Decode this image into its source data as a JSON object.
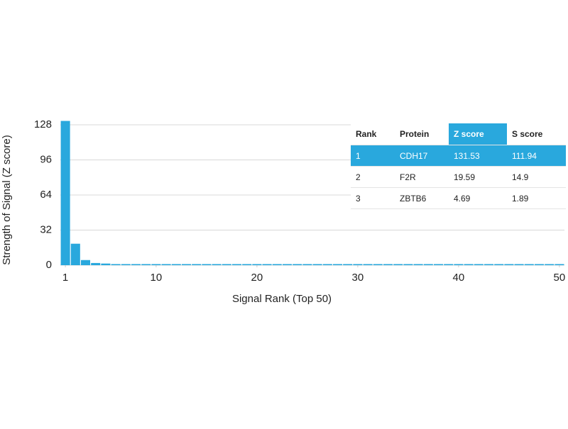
{
  "chart_data": {
    "type": "bar",
    "x_label": "Signal Rank (Top 50)",
    "y_label": "Strength of Signal (Z score)",
    "x": [
      1,
      2,
      3,
      4,
      5,
      6,
      7,
      8,
      9,
      10,
      11,
      12,
      13,
      14,
      15,
      16,
      17,
      18,
      19,
      20,
      21,
      22,
      23,
      24,
      25,
      26,
      27,
      28,
      29,
      30,
      31,
      32,
      33,
      34,
      35,
      36,
      37,
      38,
      39,
      40,
      41,
      42,
      43,
      44,
      45,
      46,
      47,
      48,
      49,
      50
    ],
    "values": [
      131.53,
      19.59,
      4.69,
      2,
      1.5,
      1,
      1,
      1,
      1,
      1,
      1,
      1,
      1,
      1,
      1,
      1,
      1,
      1,
      1,
      1,
      1,
      1,
      1,
      1,
      1,
      1,
      1,
      1,
      1,
      1,
      1,
      1,
      1,
      1,
      1,
      1,
      1,
      1,
      1,
      1,
      1,
      1,
      1,
      1,
      1,
      1,
      1,
      1,
      1,
      1
    ],
    "color": "#29a8dd",
    "xlim": [
      0.5,
      50.5
    ],
    "xticks": [
      1,
      10,
      20,
      30,
      40,
      50
    ],
    "ylim": [
      0,
      128
    ],
    "yticks": [
      0,
      32,
      64,
      96,
      128
    ],
    "grid": true
  },
  "table": {
    "columns": [
      "Rank",
      "Protein",
      "Z score",
      "S score"
    ],
    "rows": [
      [
        "1",
        "CDH17",
        "131.53",
        "111.94"
      ],
      [
        "2",
        "F2R",
        "19.59",
        "14.9"
      ],
      [
        "3",
        "ZBTB6",
        "4.69",
        "1.89"
      ]
    ],
    "highlight_row": 0,
    "highlight_column": 2,
    "highlight_color": "#29a8dd"
  }
}
